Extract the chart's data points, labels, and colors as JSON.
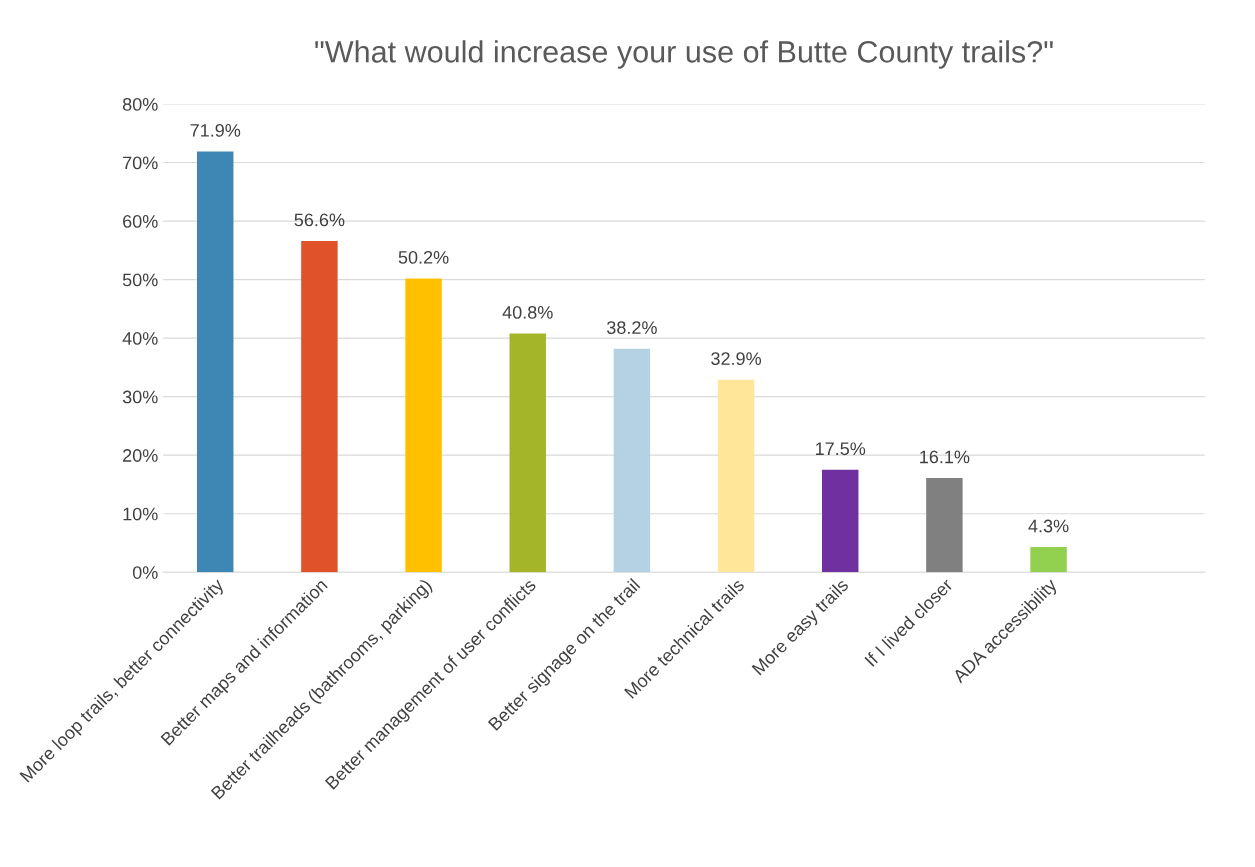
{
  "chart_data": {
    "type": "bar",
    "title": "\"What would increase your use of Butte County trails?\"",
    "categories": [
      "More loop trails, better connectivity",
      "Better maps and information",
      "Better trailheads (bathrooms, parking)",
      "Better management of user conflicts",
      "Better signage on the trail",
      "More technical trails",
      "More easy trails",
      "If I lived closer",
      "ADA accessibility",
      null
    ],
    "values": [
      71.9,
      56.6,
      50.2,
      40.8,
      38.2,
      32.9,
      17.5,
      16.1,
      4.3,
      null
    ],
    "colors": [
      "#3e87b4",
      "#e0522a",
      "#ffc000",
      "#a5b52a",
      "#b4d2e3",
      "#ffe699",
      "#7030a0",
      "#808080",
      "#92d050",
      "#808080"
    ],
    "value_labels": [
      "71.9%",
      "56.6%",
      "50.2%",
      "40.8%",
      "38.2%",
      "32.9%",
      "17.5%",
      "16.1%",
      "4.3%",
      null
    ],
    "ylim": [
      0,
      80
    ],
    "yticks": [
      {
        "value": 0,
        "label": "0%"
      },
      {
        "value": 10,
        "label": "10%"
      },
      {
        "value": 20,
        "label": "20%"
      },
      {
        "value": 30,
        "label": "30%"
      },
      {
        "value": 40,
        "label": "40%"
      },
      {
        "value": 50,
        "label": "50%"
      },
      {
        "value": 60,
        "label": "60%"
      },
      {
        "value": 70,
        "label": "70%"
      },
      {
        "value": 80,
        "label": "80%"
      }
    ],
    "grid": "y",
    "legend": false
  }
}
